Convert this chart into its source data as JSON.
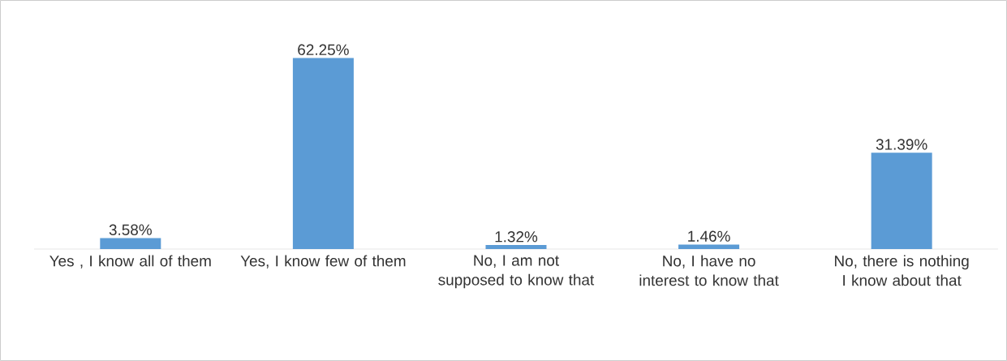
{
  "chart_data": {
    "type": "bar",
    "categories": [
      "Yes , I know all of them",
      "Yes, I know few of them",
      "No, I am not supposed to know that",
      "No, I have no interest to know that",
      "No, there is nothing I know about that"
    ],
    "values": [
      3.58,
      62.25,
      1.32,
      1.46,
      31.39
    ],
    "value_labels": [
      "3.58%",
      "62.25%",
      "1.32%",
      "1.46%",
      "31.39%"
    ],
    "color": "#5b9bd5"
  }
}
